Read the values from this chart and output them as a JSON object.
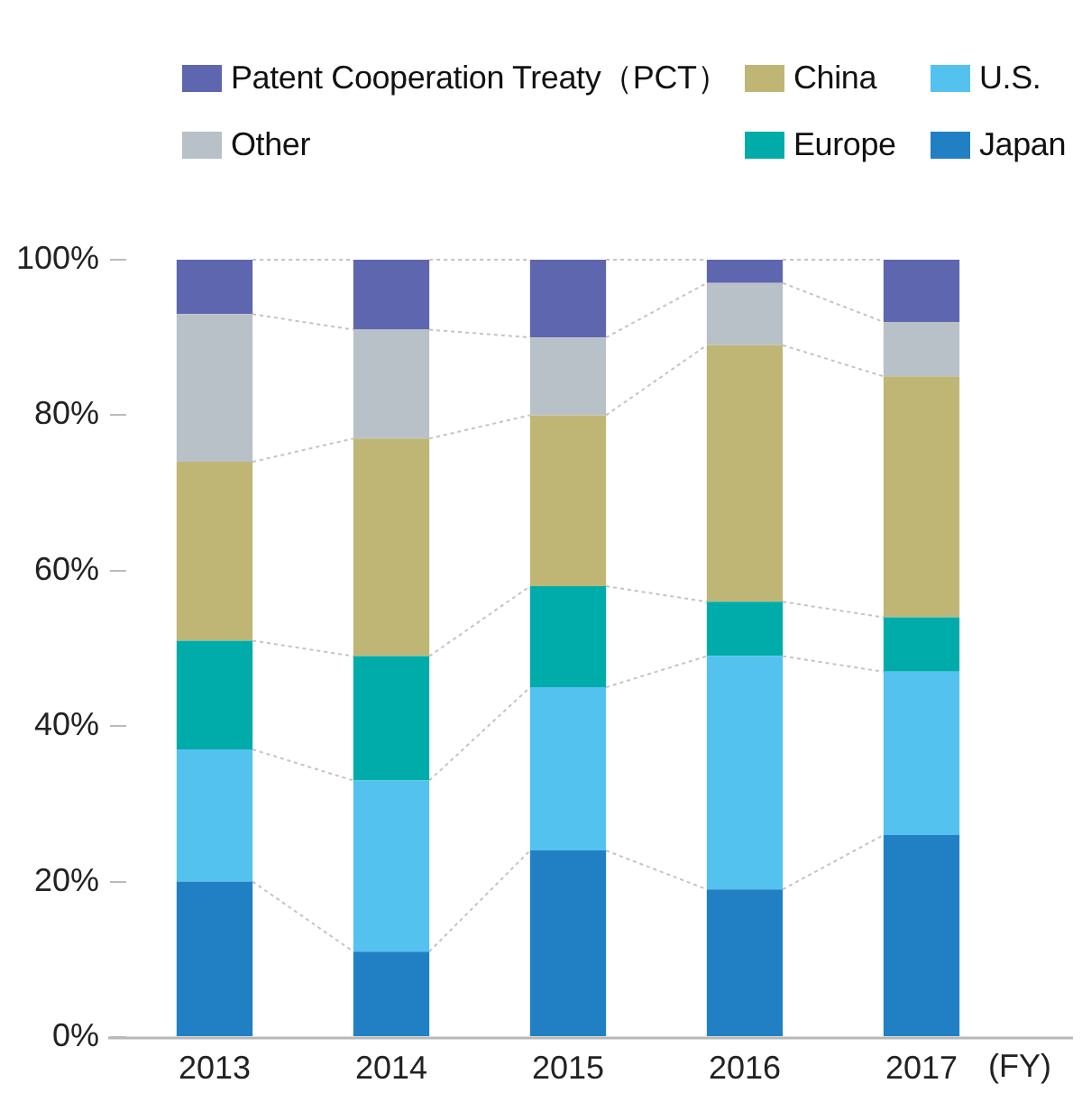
{
  "chart_data": {
    "type": "bar",
    "stacked": true,
    "xlabel": "(FY)",
    "categories": [
      "2013",
      "2014",
      "2015",
      "2016",
      "2017"
    ],
    "series": [
      {
        "name": "Japan",
        "color": "#2180c4",
        "values": [
          20,
          11,
          24,
          19,
          26
        ]
      },
      {
        "name": "U.S.",
        "color": "#54c2ef",
        "values": [
          17,
          22,
          21,
          30,
          21
        ]
      },
      {
        "name": "Europe",
        "color": "#00aca9",
        "values": [
          14,
          16,
          13,
          7,
          7
        ]
      },
      {
        "name": "China",
        "color": "#bfb676",
        "values": [
          23,
          28,
          22,
          33,
          31
        ]
      },
      {
        "name": "Other",
        "color": "#b9c1c8",
        "values": [
          19,
          14,
          10,
          8,
          7
        ]
      },
      {
        "name": "Patent Cooperation Treaty（PCT）",
        "color": "#5d66ae",
        "values": [
          7,
          9,
          10,
          3,
          8
        ]
      }
    ],
    "ylim": [
      0,
      100
    ],
    "yticks": [
      {
        "value": 0,
        "label": "0%"
      },
      {
        "value": 20,
        "label": "20%"
      },
      {
        "value": 40,
        "label": "40%"
      },
      {
        "value": 60,
        "label": "60%"
      },
      {
        "value": 80,
        "label": "80%"
      },
      {
        "value": 100,
        "label": "100%"
      }
    ],
    "grid": false,
    "legend": "top"
  }
}
